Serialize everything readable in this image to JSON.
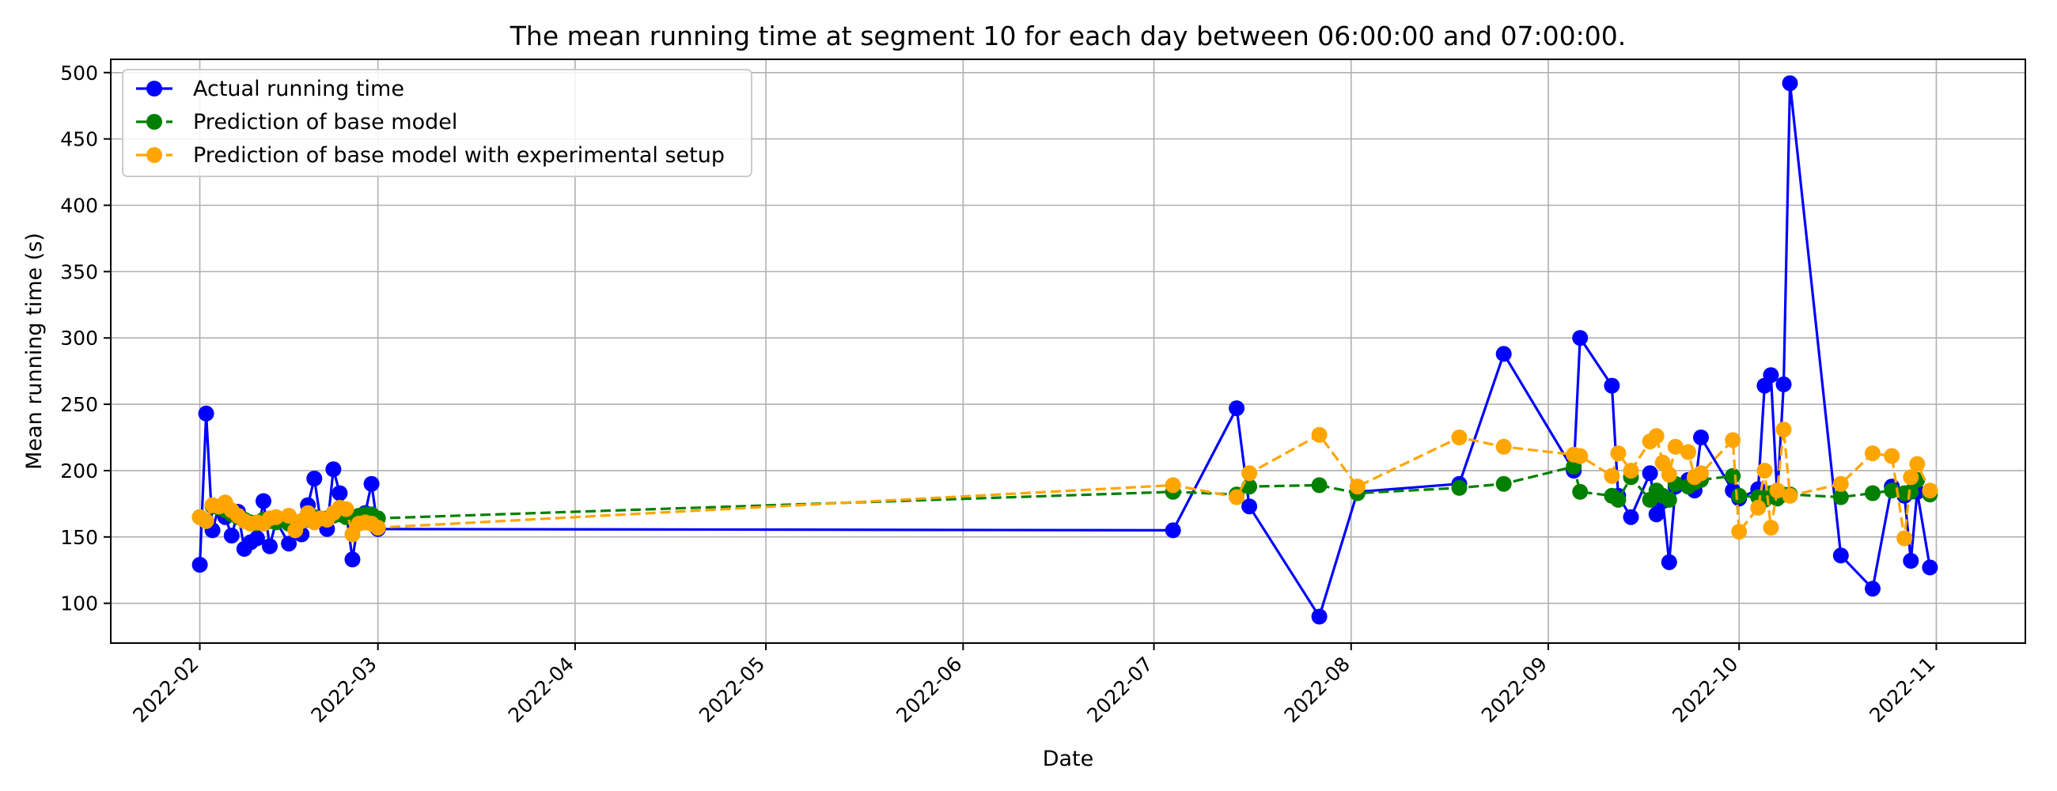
{
  "chart_data": {
    "type": "line",
    "title": "The mean running time at segment 10 for each day between 06:00:00 and 07:00:00.",
    "xlabel": "Date",
    "ylabel": "Mean running time (s)",
    "xlim": [
      "2022-01-18",
      "2022-11-15"
    ],
    "ylim": [
      70,
      510
    ],
    "x_ticks": [
      "2022-02-01",
      "2022-03-01",
      "2022-04-01",
      "2022-05-01",
      "2022-06-01",
      "2022-07-01",
      "2022-08-01",
      "2022-09-01",
      "2022-10-01",
      "2022-11-01"
    ],
    "x_tick_labels": [
      "2022-02",
      "2022-03",
      "2022-04",
      "2022-05",
      "2022-06",
      "2022-07",
      "2022-08",
      "2022-09",
      "2022-10",
      "2022-11"
    ],
    "y_ticks": [
      100,
      150,
      200,
      250,
      300,
      350,
      400,
      450,
      500
    ],
    "grid": true,
    "legend_position": "top-left",
    "series": [
      {
        "name": "Actual running time",
        "color": "#0000ff",
        "linestyle": "solid",
        "points": [
          [
            "2022-02-01",
            129
          ],
          [
            "2022-02-02",
            243
          ],
          [
            "2022-02-03",
            155
          ],
          [
            "2022-02-04",
            173
          ],
          [
            "2022-02-05",
            165
          ],
          [
            "2022-02-06",
            151
          ],
          [
            "2022-02-07",
            169
          ],
          [
            "2022-02-08",
            141
          ],
          [
            "2022-02-09",
            146
          ],
          [
            "2022-02-10",
            149
          ],
          [
            "2022-02-11",
            177
          ],
          [
            "2022-02-12",
            143
          ],
          [
            "2022-02-13",
            162
          ],
          [
            "2022-02-15",
            145
          ],
          [
            "2022-02-16",
            158
          ],
          [
            "2022-02-17",
            152
          ],
          [
            "2022-02-18",
            174
          ],
          [
            "2022-02-19",
            194
          ],
          [
            "2022-02-20",
            162
          ],
          [
            "2022-02-21",
            156
          ],
          [
            "2022-02-22",
            201
          ],
          [
            "2022-02-23",
            183
          ],
          [
            "2022-02-24",
            169
          ],
          [
            "2022-02-25",
            133
          ],
          [
            "2022-02-26",
            165
          ],
          [
            "2022-02-27",
            168
          ],
          [
            "2022-02-28",
            190
          ],
          [
            "2022-03-01",
            156
          ],
          [
            "2022-07-04",
            155
          ],
          [
            "2022-07-14",
            247
          ],
          [
            "2022-07-16",
            173
          ],
          [
            "2022-07-27",
            90
          ],
          [
            "2022-08-02",
            184
          ],
          [
            "2022-08-18",
            190
          ],
          [
            "2022-08-25",
            288
          ],
          [
            "2022-09-05",
            200
          ],
          [
            "2022-09-06",
            300
          ],
          [
            "2022-09-11",
            264
          ],
          [
            "2022-09-12",
            181
          ],
          [
            "2022-09-14",
            165
          ],
          [
            "2022-09-17",
            198
          ],
          [
            "2022-09-18",
            167
          ],
          [
            "2022-09-19",
            177
          ],
          [
            "2022-09-20",
            131
          ],
          [
            "2022-09-21",
            188
          ],
          [
            "2022-09-23",
            193
          ],
          [
            "2022-09-24",
            185
          ],
          [
            "2022-09-25",
            225
          ],
          [
            "2022-09-30",
            185
          ],
          [
            "2022-10-01",
            179
          ],
          [
            "2022-10-04",
            186
          ],
          [
            "2022-10-05",
            264
          ],
          [
            "2022-10-06",
            272
          ],
          [
            "2022-10-07",
            180
          ],
          [
            "2022-10-08",
            265
          ],
          [
            "2022-10-09",
            492
          ],
          [
            "2022-10-17",
            136
          ],
          [
            "2022-10-22",
            111
          ],
          [
            "2022-10-25",
            188
          ],
          [
            "2022-10-27",
            181
          ],
          [
            "2022-10-28",
            132
          ],
          [
            "2022-10-29",
            184
          ],
          [
            "2022-10-31",
            127
          ]
        ]
      },
      {
        "name": "Prediction of base model",
        "color": "#008000",
        "linestyle": "dashed",
        "points": [
          [
            "2022-02-01",
            165
          ],
          [
            "2022-02-02",
            162
          ],
          [
            "2022-02-03",
            173
          ],
          [
            "2022-02-04",
            172
          ],
          [
            "2022-02-05",
            170
          ],
          [
            "2022-02-06",
            167
          ],
          [
            "2022-02-07",
            165
          ],
          [
            "2022-02-08",
            163
          ],
          [
            "2022-02-09",
            161
          ],
          [
            "2022-02-10",
            160
          ],
          [
            "2022-02-11",
            163
          ],
          [
            "2022-02-12",
            162
          ],
          [
            "2022-02-13",
            161
          ],
          [
            "2022-02-15",
            160
          ],
          [
            "2022-02-16",
            160
          ],
          [
            "2022-02-17",
            162
          ],
          [
            "2022-02-18",
            163
          ],
          [
            "2022-02-19",
            165
          ],
          [
            "2022-02-20",
            164
          ],
          [
            "2022-02-21",
            164
          ],
          [
            "2022-02-22",
            166
          ],
          [
            "2022-02-23",
            167
          ],
          [
            "2022-02-24",
            165
          ],
          [
            "2022-02-25",
            164
          ],
          [
            "2022-02-26",
            166
          ],
          [
            "2022-02-27",
            167
          ],
          [
            "2022-02-28",
            167
          ],
          [
            "2022-03-01",
            164
          ],
          [
            "2022-07-04",
            184
          ],
          [
            "2022-07-14",
            182
          ],
          [
            "2022-07-16",
            188
          ],
          [
            "2022-07-27",
            189
          ],
          [
            "2022-08-02",
            183
          ],
          [
            "2022-08-18",
            187
          ],
          [
            "2022-08-25",
            190
          ],
          [
            "2022-09-05",
            203
          ],
          [
            "2022-09-06",
            184
          ],
          [
            "2022-09-11",
            181
          ],
          [
            "2022-09-12",
            178
          ],
          [
            "2022-09-14",
            195
          ],
          [
            "2022-09-17",
            178
          ],
          [
            "2022-09-18",
            185
          ],
          [
            "2022-09-19",
            181
          ],
          [
            "2022-09-20",
            178
          ],
          [
            "2022-09-21",
            190
          ],
          [
            "2022-09-23",
            188
          ],
          [
            "2022-09-24",
            191
          ],
          [
            "2022-09-25",
            193
          ],
          [
            "2022-09-30",
            196
          ],
          [
            "2022-10-01",
            181
          ],
          [
            "2022-10-04",
            180
          ],
          [
            "2022-10-05",
            178
          ],
          [
            "2022-10-06",
            183
          ],
          [
            "2022-10-07",
            179
          ],
          [
            "2022-10-08",
            182
          ],
          [
            "2022-10-09",
            182
          ],
          [
            "2022-10-17",
            180
          ],
          [
            "2022-10-22",
            183
          ],
          [
            "2022-10-25",
            185
          ],
          [
            "2022-10-27",
            183
          ],
          [
            "2022-10-28",
            184
          ],
          [
            "2022-10-29",
            193
          ],
          [
            "2022-10-31",
            182
          ]
        ]
      },
      {
        "name": "Prediction of base model with experimental setup",
        "color": "#ffa500",
        "linestyle": "dashed",
        "points": [
          [
            "2022-02-01",
            165
          ],
          [
            "2022-02-02",
            162
          ],
          [
            "2022-02-03",
            174
          ],
          [
            "2022-02-04",
            173
          ],
          [
            "2022-02-05",
            176
          ],
          [
            "2022-02-06",
            170
          ],
          [
            "2022-02-07",
            166
          ],
          [
            "2022-02-08",
            162
          ],
          [
            "2022-02-09",
            160
          ],
          [
            "2022-02-10",
            161
          ],
          [
            "2022-02-11",
            160
          ],
          [
            "2022-02-12",
            164
          ],
          [
            "2022-02-13",
            165
          ],
          [
            "2022-02-15",
            166
          ],
          [
            "2022-02-16",
            155
          ],
          [
            "2022-02-17",
            162
          ],
          [
            "2022-02-18",
            168
          ],
          [
            "2022-02-19",
            161
          ],
          [
            "2022-02-20",
            164
          ],
          [
            "2022-02-21",
            163
          ],
          [
            "2022-02-22",
            168
          ],
          [
            "2022-02-23",
            172
          ],
          [
            "2022-02-24",
            171
          ],
          [
            "2022-02-25",
            152
          ],
          [
            "2022-02-26",
            160
          ],
          [
            "2022-02-27",
            161
          ],
          [
            "2022-02-28",
            160
          ],
          [
            "2022-03-01",
            157
          ],
          [
            "2022-07-04",
            189
          ],
          [
            "2022-07-14",
            180
          ],
          [
            "2022-07-16",
            198
          ],
          [
            "2022-07-27",
            227
          ],
          [
            "2022-08-02",
            188
          ],
          [
            "2022-08-18",
            225
          ],
          [
            "2022-08-25",
            218
          ],
          [
            "2022-09-05",
            212
          ],
          [
            "2022-09-06",
            211
          ],
          [
            "2022-09-11",
            196
          ],
          [
            "2022-09-12",
            213
          ],
          [
            "2022-09-14",
            200
          ],
          [
            "2022-09-17",
            222
          ],
          [
            "2022-09-18",
            226
          ],
          [
            "2022-09-19",
            206
          ],
          [
            "2022-09-20",
            197
          ],
          [
            "2022-09-21",
            218
          ],
          [
            "2022-09-23",
            214
          ],
          [
            "2022-09-24",
            195
          ],
          [
            "2022-09-25",
            198
          ],
          [
            "2022-09-30",
            223
          ],
          [
            "2022-10-01",
            154
          ],
          [
            "2022-10-04",
            172
          ],
          [
            "2022-10-05",
            200
          ],
          [
            "2022-10-06",
            157
          ],
          [
            "2022-10-07",
            185
          ],
          [
            "2022-10-08",
            231
          ],
          [
            "2022-10-09",
            181
          ],
          [
            "2022-10-17",
            190
          ],
          [
            "2022-10-22",
            213
          ],
          [
            "2022-10-25",
            211
          ],
          [
            "2022-10-27",
            149
          ],
          [
            "2022-10-28",
            195
          ],
          [
            "2022-10-29",
            205
          ],
          [
            "2022-10-31",
            185
          ]
        ]
      }
    ]
  }
}
